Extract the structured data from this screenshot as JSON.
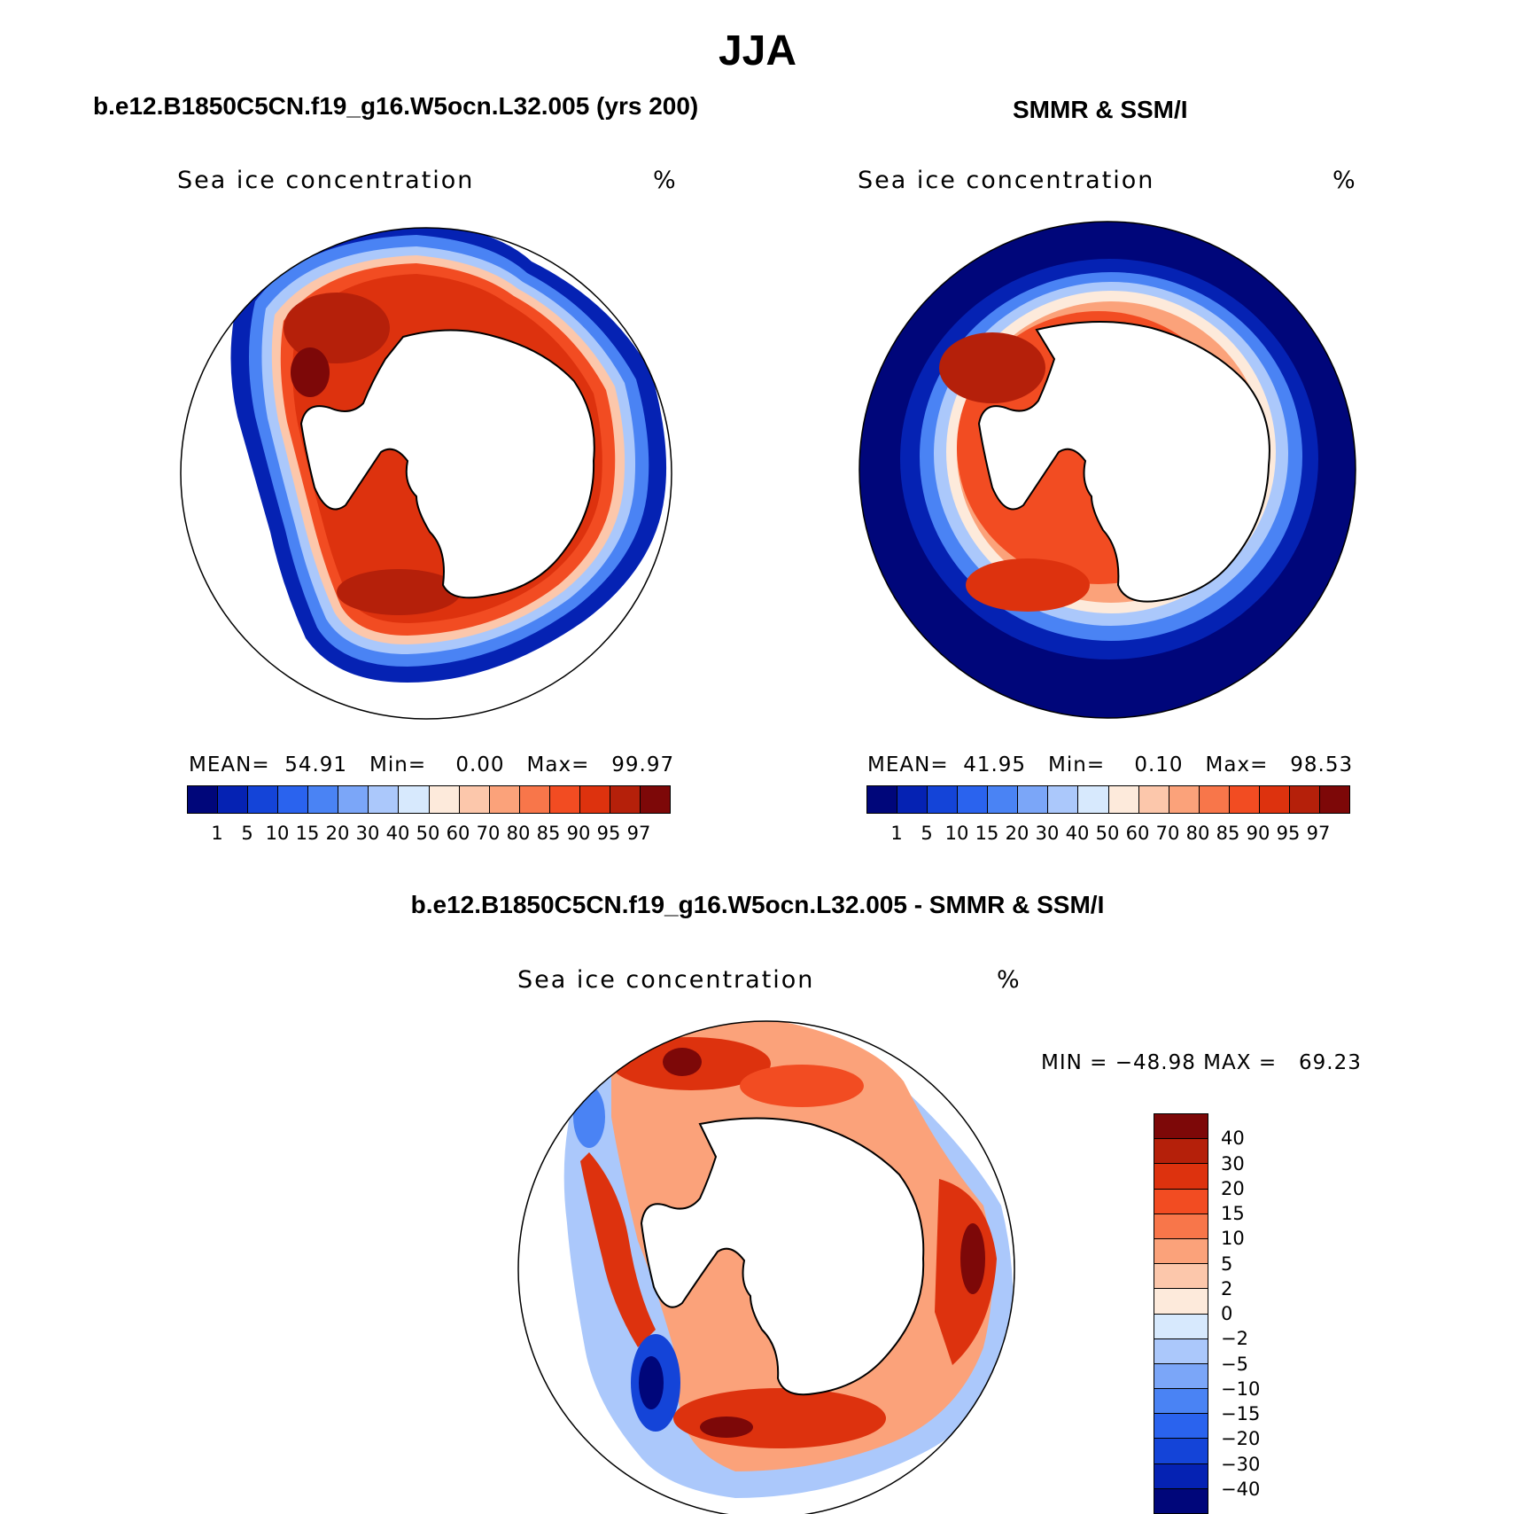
{
  "figure": {
    "season": "JJA",
    "variable_label": "Sea ice concentration",
    "units": "%"
  },
  "panels": [
    {
      "title": "b.e12.B1850C5CN.f19_g16.W5ocn.L32.005 (yrs 200)",
      "stats": {
        "mean_label": "MEAN=",
        "mean": "54.91",
        "min_label": "Min=",
        "min": "0.00",
        "max_label": "Max=",
        "max": "99.97"
      }
    },
    {
      "title": "SMMR & SSM/I",
      "stats": {
        "mean_label": "MEAN=",
        "mean": "41.95",
        "min_label": "Min=",
        "min": "0.10",
        "max_label": "Max=",
        "max": "98.53"
      }
    },
    {
      "title": "b.e12.B1850C5CN.f19_g16.W5ocn.L32.005 - SMMR & SSM/I",
      "stats": {
        "min_label": "MIN =",
        "min": "−48.98",
        "max_label": "MAX =",
        "max": "69.23"
      }
    }
  ],
  "colorbar_abs": {
    "colors": [
      "#00067a",
      "#0522b3",
      "#1444d8",
      "#2a63ee",
      "#4a83f4",
      "#7ba6f8",
      "#abc8fb",
      "#d7e9fd",
      "#fdeadb",
      "#fcc7ab",
      "#fba27a",
      "#f8764a",
      "#f24c22",
      "#dd320e",
      "#b5200a",
      "#7d0808"
    ],
    "ticks": [
      "1",
      "5",
      "10",
      "15",
      "20",
      "30",
      "40",
      "50",
      "60",
      "70",
      "80",
      "85",
      "90",
      "95",
      "97"
    ]
  },
  "colorbar_diff": {
    "colors": [
      "#7d0808",
      "#b5200a",
      "#dd320e",
      "#f24c22",
      "#f8764a",
      "#fba27a",
      "#fcc7ab",
      "#fdeadb",
      "#d7e9fd",
      "#abc8fb",
      "#7ba6f8",
      "#4a83f4",
      "#2a63ee",
      "#1444d8",
      "#0522b3",
      "#00067a"
    ],
    "ticks": [
      "40",
      "30",
      "20",
      "15",
      "10",
      "5",
      "2",
      "0",
      "−2",
      "−5",
      "−10",
      "−15",
      "−20",
      "−30",
      "−40"
    ]
  }
}
